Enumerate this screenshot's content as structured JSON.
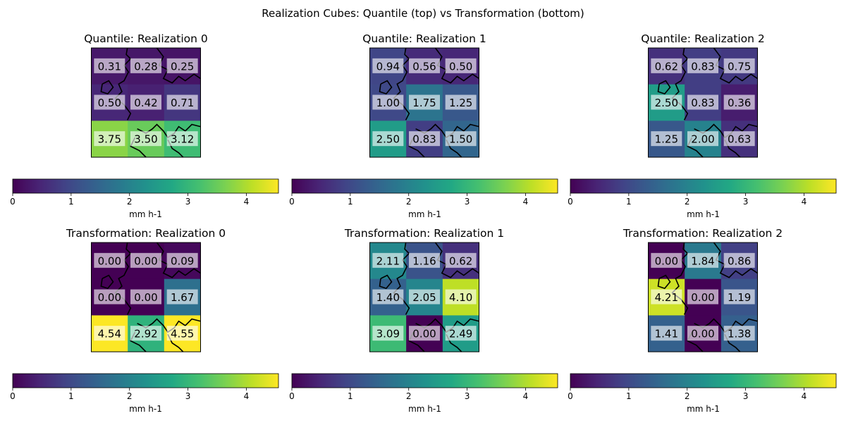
{
  "figure_title": "Realization Cubes: Quantile (top) vs Transformation (bottom)",
  "colorbar": {
    "ticks": [
      0,
      1,
      2,
      3,
      4
    ],
    "tick_labels": [
      "0",
      "1",
      "2",
      "3",
      "4"
    ],
    "vmin": 0,
    "vmax": 4.55,
    "label": "mm h-1",
    "colormap": "viridis"
  },
  "chart_data": [
    {
      "type": "heatmap",
      "title": "Quantile: Realization 0",
      "values": [
        [
          0.31,
          0.28,
          0.25
        ],
        [
          0.5,
          0.42,
          0.71
        ],
        [
          3.75,
          3.5,
          3.12
        ]
      ],
      "labels": [
        [
          "0.31",
          "0.28",
          "0.25"
        ],
        [
          "0.50",
          "0.42",
          "0.71"
        ],
        [
          "3.75",
          "3.50",
          "3.12"
        ]
      ]
    },
    {
      "type": "heatmap",
      "title": "Quantile: Realization 1",
      "values": [
        [
          0.94,
          0.56,
          0.5
        ],
        [
          1.0,
          1.75,
          1.25
        ],
        [
          2.5,
          0.83,
          1.5
        ]
      ],
      "labels": [
        [
          "0.94",
          "0.56",
          "0.50"
        ],
        [
          "1.00",
          "1.75",
          "1.25"
        ],
        [
          "2.50",
          "0.83",
          "1.50"
        ]
      ]
    },
    {
      "type": "heatmap",
      "title": "Quantile: Realization 2",
      "values": [
        [
          0.62,
          0.83,
          0.75
        ],
        [
          2.5,
          0.83,
          0.36
        ],
        [
          1.25,
          2.0,
          0.63
        ]
      ],
      "labels": [
        [
          "0.62",
          "0.83",
          "0.75"
        ],
        [
          "2.50",
          "0.83",
          "0.36"
        ],
        [
          "1.25",
          "2.00",
          "0.63"
        ]
      ]
    },
    {
      "type": "heatmap",
      "title": "Transformation: Realization 0",
      "values": [
        [
          0.0,
          0.0,
          0.09
        ],
        [
          0.0,
          0.0,
          1.67
        ],
        [
          4.54,
          2.92,
          4.55
        ]
      ],
      "labels": [
        [
          "0.00",
          "0.00",
          "0.09"
        ],
        [
          "0.00",
          "0.00",
          "1.67"
        ],
        [
          "4.54",
          "2.92",
          "4.55"
        ]
      ]
    },
    {
      "type": "heatmap",
      "title": "Transformation: Realization 1",
      "values": [
        [
          2.11,
          1.16,
          0.62
        ],
        [
          1.4,
          2.05,
          4.1
        ],
        [
          3.09,
          0.0,
          2.49
        ]
      ],
      "labels": [
        [
          "2.11",
          "1.16",
          "0.62"
        ],
        [
          "1.40",
          "2.05",
          "4.10"
        ],
        [
          "3.09",
          "0.00",
          "2.49"
        ]
      ]
    },
    {
      "type": "heatmap",
      "title": "Transformation: Realization 2",
      "values": [
        [
          0.0,
          1.84,
          0.86
        ],
        [
          4.21,
          0.0,
          1.19
        ],
        [
          1.41,
          0.0,
          1.38
        ]
      ],
      "labels": [
        [
          "0.00",
          "1.84",
          "0.86"
        ],
        [
          "4.21",
          "0.00",
          "1.19"
        ],
        [
          "1.41",
          "0.00",
          "1.38"
        ]
      ]
    }
  ]
}
